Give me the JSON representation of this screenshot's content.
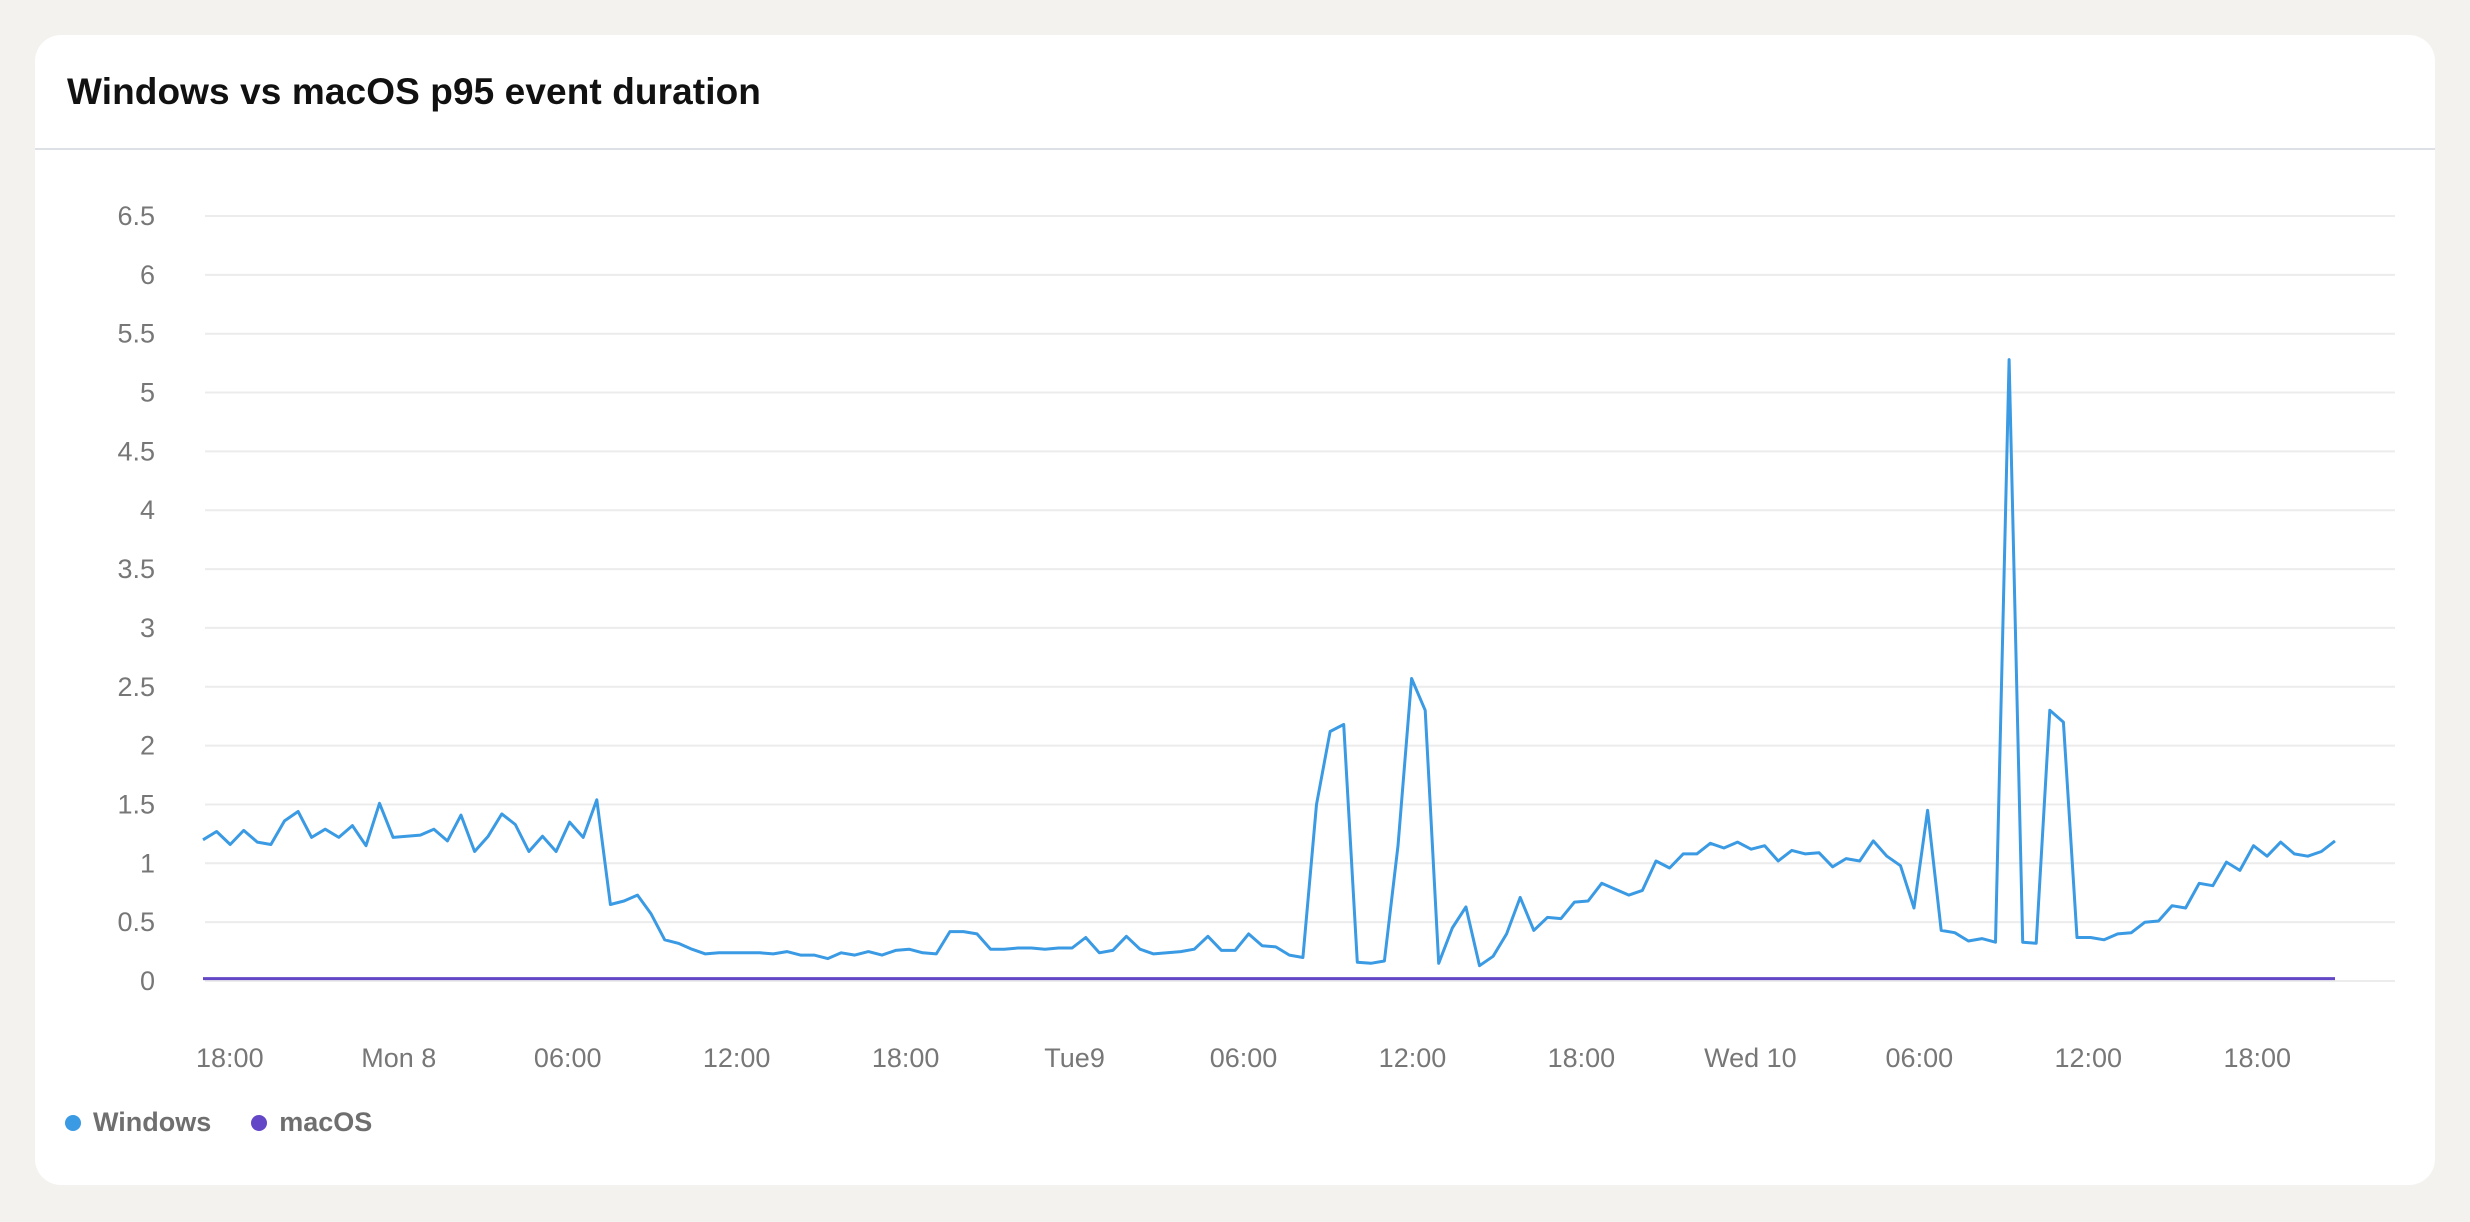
{
  "card": {
    "title": "Windows vs macOS p95 event duration"
  },
  "chart_data": {
    "type": "line",
    "title": "Windows vs macOS p95 event duration",
    "xlabel": "",
    "ylabel": "",
    "ylim": [
      0,
      6.5
    ],
    "y_ticks": [
      "0",
      "0.5",
      "1",
      "1.5",
      "2",
      "2.5",
      "3",
      "3.5",
      "4",
      "4.5",
      "5",
      "5.5",
      "6",
      "6.5"
    ],
    "x_range": [
      0,
      159
    ],
    "x_ticks": [
      {
        "x": 2,
        "label": "18:00"
      },
      {
        "x": 14.6,
        "label": "Mon 8"
      },
      {
        "x": 27.2,
        "label": "06:00"
      },
      {
        "x": 39.8,
        "label": "12:00"
      },
      {
        "x": 52.4,
        "label": "18:00"
      },
      {
        "x": 65,
        "label": "Tue9"
      },
      {
        "x": 77.6,
        "label": "06:00"
      },
      {
        "x": 90.2,
        "label": "12:00"
      },
      {
        "x": 102.8,
        "label": "18:00"
      },
      {
        "x": 115.4,
        "label": "Wed 10"
      },
      {
        "x": 128,
        "label": "06:00"
      },
      {
        "x": 140.6,
        "label": "12:00"
      },
      {
        "x": 153.2,
        "label": "18:00"
      }
    ],
    "grid": true,
    "legend_position": "bottom-left",
    "series": [
      {
        "name": "Windows",
        "color": "#3a9ae3",
        "values": [
          1.2,
          1.27,
          1.16,
          1.28,
          1.18,
          1.16,
          1.36,
          1.44,
          1.22,
          1.29,
          1.22,
          1.32,
          1.15,
          1.51,
          1.22,
          1.23,
          1.24,
          1.29,
          1.19,
          1.41,
          1.1,
          1.23,
          1.42,
          1.33,
          1.1,
          1.23,
          1.1,
          1.35,
          1.22,
          1.54,
          0.65,
          0.68,
          0.73,
          0.57,
          0.35,
          0.32,
          0.27,
          0.23,
          0.24,
          0.24,
          0.24,
          0.24,
          0.23,
          0.25,
          0.22,
          0.22,
          0.19,
          0.24,
          0.22,
          0.25,
          0.22,
          0.26,
          0.27,
          0.24,
          0.23,
          0.42,
          0.42,
          0.4,
          0.27,
          0.27,
          0.28,
          0.28,
          0.27,
          0.28,
          0.28,
          0.37,
          0.24,
          0.26,
          0.38,
          0.27,
          0.23,
          0.24,
          0.25,
          0.27,
          0.38,
          0.26,
          0.26,
          0.4,
          0.3,
          0.29,
          0.22,
          0.2,
          1.5,
          2.12,
          2.18,
          0.16,
          0.15,
          0.17,
          1.15,
          2.57,
          2.3,
          0.15,
          0.45,
          0.63,
          0.13,
          0.21,
          0.4,
          0.71,
          0.43,
          0.54,
          0.53,
          0.67,
          0.68,
          0.83,
          0.78,
          0.73,
          0.77,
          1.02,
          0.96,
          1.08,
          1.08,
          1.17,
          1.13,
          1.18,
          1.12,
          1.15,
          1.02,
          1.11,
          1.08,
          1.09,
          0.97,
          1.04,
          1.02,
          1.19,
          1.06,
          0.98,
          0.62,
          1.45,
          0.43,
          0.41,
          0.34,
          0.36,
          0.33,
          5.28,
          0.33,
          0.32,
          2.3,
          2.2,
          0.37,
          0.37,
          0.35,
          0.4,
          0.41,
          0.5,
          0.51,
          0.64,
          0.62,
          0.83,
          0.81,
          1.01,
          0.94,
          1.15,
          1.06,
          1.18,
          1.08,
          1.06,
          1.1,
          1.19
        ]
      },
      {
        "name": "macOS",
        "color": "#6347c6",
        "values": [
          0.02,
          0.02,
          0.02,
          0.02,
          0.02,
          0.02,
          0.02,
          0.02,
          0.02,
          0.02,
          0.02,
          0.02,
          0.02,
          0.02,
          0.02,
          0.02,
          0.02,
          0.02,
          0.02,
          0.02,
          0.02,
          0.02,
          0.02,
          0.02,
          0.02,
          0.02,
          0.02,
          0.02,
          0.02,
          0.02,
          0.02,
          0.02,
          0.02,
          0.02,
          0.02,
          0.02,
          0.02,
          0.02,
          0.02,
          0.02,
          0.02,
          0.02,
          0.02,
          0.02,
          0.02,
          0.02,
          0.02,
          0.02,
          0.02,
          0.02,
          0.02,
          0.02,
          0.02,
          0.02,
          0.02,
          0.02,
          0.02,
          0.02,
          0.02,
          0.02,
          0.02,
          0.02,
          0.02,
          0.02,
          0.02,
          0.02,
          0.02,
          0.02,
          0.02,
          0.02,
          0.02,
          0.02,
          0.02,
          0.02,
          0.02,
          0.02,
          0.02,
          0.02,
          0.02,
          0.02,
          0.02,
          0.02,
          0.02,
          0.02,
          0.02,
          0.02,
          0.02,
          0.02,
          0.02,
          0.02,
          0.02,
          0.02,
          0.02,
          0.02,
          0.02,
          0.02,
          0.02,
          0.02,
          0.02,
          0.02,
          0.02,
          0.02,
          0.02,
          0.02,
          0.02,
          0.02,
          0.02,
          0.02,
          0.02,
          0.02,
          0.02,
          0.02,
          0.02,
          0.02,
          0.02,
          0.02,
          0.02,
          0.02,
          0.02,
          0.02,
          0.02,
          0.02,
          0.02,
          0.02,
          0.02,
          0.02,
          0.02,
          0.02,
          0.02,
          0.02,
          0.02,
          0.02,
          0.02,
          0.02,
          0.02,
          0.02,
          0.02,
          0.02,
          0.02,
          0.02,
          0.02,
          0.02,
          0.02,
          0.02,
          0.02,
          0.02,
          0.02,
          0.02,
          0.02,
          0.02,
          0.02,
          0.02,
          0.02,
          0.02,
          0.02,
          0.02,
          0.02,
          0.02,
          0.02,
          0.02
        ]
      }
    ]
  }
}
